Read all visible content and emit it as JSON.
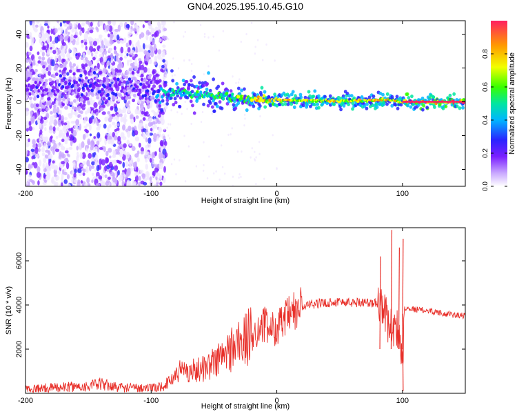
{
  "title": "GN04.2025.195.10.45.G10",
  "chart_data": [
    {
      "type": "heatmap",
      "xlabel": "Height of straight line (km)",
      "ylabel": "Frequency (Hz)",
      "xlim": [
        -200,
        150
      ],
      "ylim": [
        -50,
        48
      ],
      "xticks": [
        "-200",
        "-100",
        "0",
        "100"
      ],
      "xtick_values": [
        -200,
        -100,
        0,
        100
      ],
      "yticks": [
        "-40",
        "-20",
        "0",
        "20",
        "40"
      ],
      "ytick_values": [
        -40,
        -20,
        0,
        20,
        40
      ],
      "grid": false,
      "colorbar": {
        "label": "Normalized spectral amplitude",
        "ticks": [
          "0.0",
          "0.2",
          "0.4",
          "0.6",
          "0.8"
        ],
        "tick_values": [
          0.0,
          0.2,
          0.4,
          0.6,
          0.8
        ],
        "range": [
          0,
          1
        ],
        "colormap": "rainbow-light",
        "colors": [
          "#efe6ff",
          "#c9a8ff",
          "#7a1fff",
          "#2a24ff",
          "#00b6ff",
          "#00e6a0",
          "#39ff00",
          "#f2ff00",
          "#ff9a00",
          "#ff2060"
        ]
      },
      "ridge": {
        "x": [
          -200,
          -180,
          -160,
          -140,
          -120,
          -100,
          -90,
          -80,
          -70,
          -60,
          -50,
          -40,
          -30,
          -20,
          -10,
          0,
          10,
          20,
          40,
          60,
          80,
          90,
          95,
          100,
          120,
          150
        ],
        "frequency": [
          9,
          8,
          9,
          8,
          8,
          7,
          7,
          6,
          5,
          4,
          4,
          3,
          2.5,
          2,
          1.5,
          1,
          1,
          0.5,
          0.5,
          0.5,
          1,
          1.5,
          0.5,
          0,
          0,
          0
        ],
        "amplitude": [
          0.25,
          0.27,
          0.3,
          0.3,
          0.28,
          0.3,
          0.55,
          0.6,
          0.6,
          0.62,
          0.65,
          0.65,
          0.7,
          0.78,
          0.85,
          0.9,
          0.85,
          0.75,
          0.8,
          0.8,
          0.82,
          0.85,
          0.8,
          0.95,
          1.0,
          1.0
        ]
      }
    },
    {
      "type": "line",
      "xlabel": "Height of straight line (km)",
      "ylabel": "SNR (10 * v/v)",
      "xlim": [
        -200,
        150
      ],
      "ylim": [
        0,
        7500
      ],
      "xticks": [
        "-200",
        "-100",
        "0",
        "100"
      ],
      "xtick_values": [
        -200,
        -100,
        0,
        100
      ],
      "yticks": [
        "2000",
        "4000",
        "6000"
      ],
      "ytick_values": [
        2000,
        4000,
        6000
      ],
      "grid": false,
      "series": [
        {
          "color": "#e8302a",
          "x": [
            -200,
            -180,
            -160,
            -150,
            -140,
            -130,
            -120,
            -110,
            -100,
            -95,
            -90,
            -85,
            -80,
            -75,
            -70,
            -65,
            -60,
            -55,
            -50,
            -45,
            -40,
            -35,
            -30,
            -25,
            -20,
            -15,
            -10,
            -5,
            0,
            5,
            10,
            15,
            20,
            25,
            30,
            40,
            50,
            60,
            70,
            75,
            80,
            85,
            88,
            90,
            92,
            95,
            97,
            100,
            102,
            105,
            110,
            120,
            130,
            140,
            150
          ],
          "y": [
            200,
            250,
            300,
            320,
            420,
            300,
            250,
            250,
            220,
            260,
            350,
            550,
            900,
            1100,
            1000,
            1050,
            1100,
            1200,
            1400,
            1600,
            1800,
            2100,
            2300,
            2400,
            2600,
            2900,
            3100,
            2900,
            3000,
            3200,
            3500,
            3700,
            3900,
            4000,
            4050,
            4100,
            4150,
            4100,
            4150,
            4050,
            4100,
            4000,
            3200,
            3100,
            2900,
            3000,
            2800,
            1500,
            3900,
            3850,
            3800,
            3750,
            3650,
            3550,
            3500
          ]
        }
      ],
      "spikes": [
        {
          "x": 82,
          "y": 6200
        },
        {
          "x": 91,
          "y": 7400
        },
        {
          "x": 97,
          "y": 6600
        },
        {
          "x": 100,
          "y": 7000
        }
      ]
    }
  ]
}
